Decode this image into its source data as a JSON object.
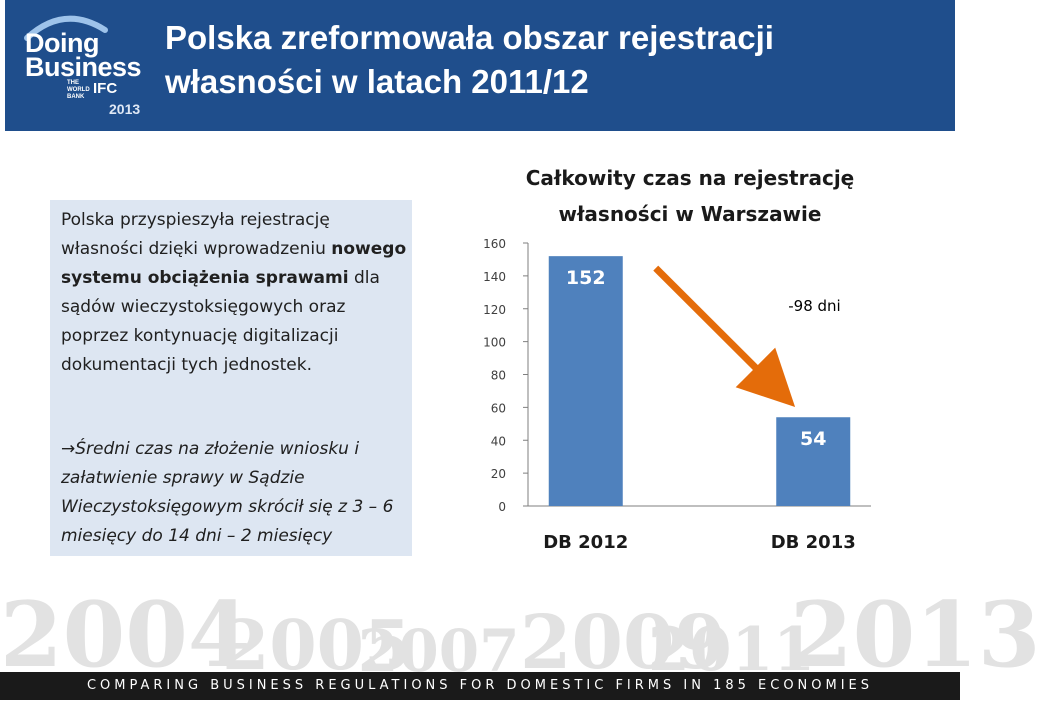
{
  "header": {
    "logo": {
      "line1": "Doing",
      "line2": "Business",
      "wb_text": "THE WORLD BANK",
      "ifc_text": "IFC",
      "year": "2013"
    },
    "title_line1": "Polska zreformowała obszar rejestracji",
    "title_line2": "własności w latach 2011/12"
  },
  "textbox": {
    "p1_a": "Polska przyspieszyła rejestrację własności dzięki wprowadzeniu ",
    "p1_bold": "nowego systemu obciążenia sprawami",
    "p1_b": " dla sądów wieczystoksięgowych oraz poprzez kontynuację digitalizacji dokumentacji tych jednostek.",
    "p2_arrow": "→",
    "p2": "Średni czas na złożenie wniosku i załatwienie sprawy w Sądzie Wieczystoksięgowym skrócił się z 3 – 6 miesięcy do 14 dni – 2 miesięcy"
  },
  "chart_data": {
    "type": "bar",
    "title": "Całkowity czas na rejestrację własności w Warszawie",
    "categories": [
      "DB 2012",
      "DB 2013"
    ],
    "values": [
      152,
      54
    ],
    "data_labels": [
      "152",
      "54"
    ],
    "ylim": [
      0,
      160
    ],
    "yticks": [
      "0",
      "20",
      "40",
      "60",
      "80",
      "100",
      "120",
      "140",
      "160"
    ],
    "annotation": "-98 dni",
    "xlabel": "",
    "ylabel": "",
    "grid": false,
    "legend": "none",
    "bar_color": "#4f81bd",
    "arrow_color": "#e46c0a"
  },
  "background_years": [
    "2004",
    "2005",
    "2007",
    "2009",
    "2011",
    "2013"
  ],
  "footer": {
    "text": "COMPARING BUSINESS REGULATIONS FOR DOMESTIC FIRMS IN 185 ECONOMIES"
  },
  "colors": {
    "header_bg": "#1f4e8c",
    "textbox_bg": "#dde6f2",
    "footer_bg": "#1a1a1a"
  }
}
